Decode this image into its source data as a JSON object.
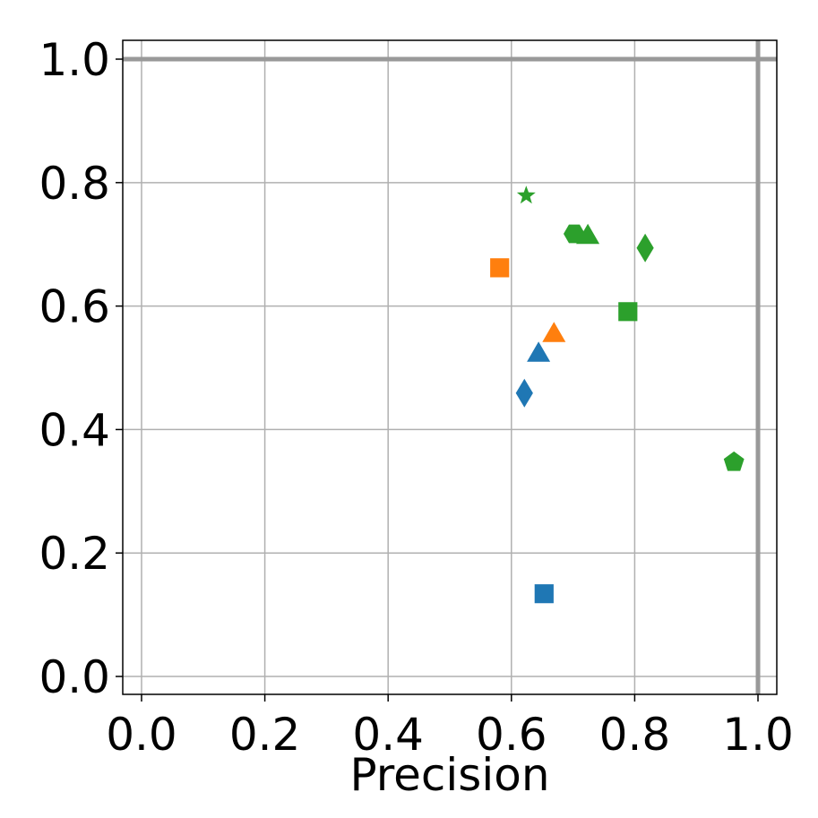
{
  "chart_data": {
    "type": "scatter",
    "xlabel": "Precision",
    "xlim": [
      -0.0305,
      1.0305
    ],
    "ylim": [
      -0.029,
      1.0305
    ],
    "xticks": [
      {
        "value": 0,
        "label": "0.0"
      },
      0.2,
      0.4,
      0.6,
      0.8,
      {
        "value": 1,
        "label": "1.0"
      }
    ],
    "yticks": [
      {
        "value": 0,
        "label": "0.0"
      },
      0.2,
      0.4,
      0.6,
      0.8,
      {
        "value": 1,
        "label": "1.0"
      }
    ],
    "grid": true,
    "vlines": [
      1
    ],
    "hlines": [
      1
    ],
    "line_color": "#999999",
    "series": [
      {
        "color": "#1f77b4",
        "markers": [
          "square",
          "triangle",
          "diamond"
        ],
        "x": [
          0.653,
          0.644,
          0.621
        ],
        "values": [
          0.134,
          0.525,
          0.459
        ]
      },
      {
        "color": "#ff7f0e",
        "markers": [
          "square",
          "triangle"
        ],
        "x": [
          0.581,
          0.669
        ],
        "values": [
          0.662,
          0.557
        ]
      },
      {
        "color": "#2ca02c",
        "markers": [
          "star",
          "hexagon",
          "triangle",
          "diamond",
          "square",
          "pentagon"
        ],
        "x": [
          0.624,
          0.702,
          0.724,
          0.817,
          0.789,
          0.961
        ],
        "values": [
          0.779,
          0.717,
          0.716,
          0.694,
          0.591,
          0.347
        ]
      }
    ]
  }
}
